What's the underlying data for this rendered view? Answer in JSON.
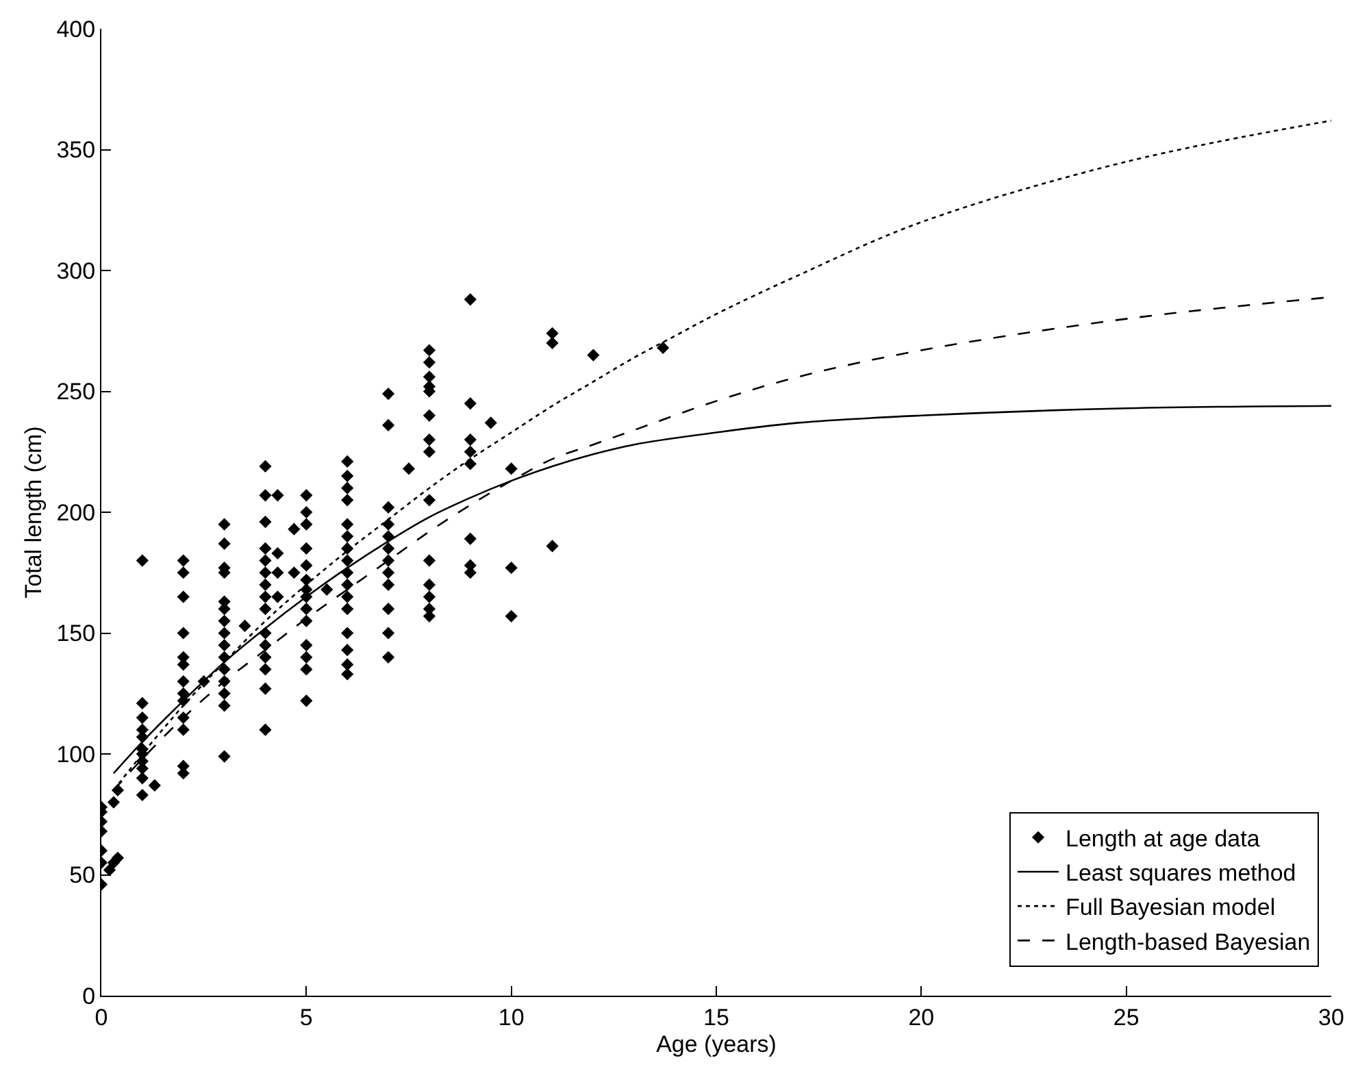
{
  "chart_data": {
    "type": "scatter",
    "xlabel": "Age (years)",
    "ylabel": "Total length (cm)",
    "xlim": [
      0,
      30
    ],
    "ylim": [
      0,
      400
    ],
    "xticks": [
      0,
      5,
      10,
      15,
      20,
      25,
      30
    ],
    "yticks": [
      0,
      50,
      100,
      150,
      200,
      250,
      300,
      350,
      400
    ],
    "legend": "bottom right",
    "series": [
      {
        "name": "Length at age data",
        "marker": "diamond",
        "color": "#000000",
        "x": [
          0,
          0,
          0,
          0,
          0,
          0,
          0,
          0.2,
          0.3,
          0.4,
          0.3,
          0.4,
          1,
          1,
          1,
          1,
          1,
          1,
          1,
          1,
          1,
          1,
          1.3,
          1,
          2,
          2,
          2,
          2,
          2,
          2,
          2,
          2,
          2,
          2,
          2,
          2,
          2,
          2.5,
          3,
          3,
          3,
          3,
          3,
          3,
          3,
          3,
          3,
          3,
          3,
          3,
          3,
          3,
          3,
          3.5,
          4,
          4,
          4,
          4,
          4,
          4,
          4,
          4,
          4,
          4,
          4,
          4,
          4,
          4,
          4,
          4.3,
          4.3,
          4.3,
          4.3,
          4.7,
          4.7,
          5,
          5,
          5,
          5,
          5,
          5,
          5,
          5,
          5,
          5,
          5,
          5,
          5,
          5,
          5.5,
          6,
          6,
          6,
          6,
          6,
          6,
          6,
          6,
          6,
          6,
          6,
          6,
          6,
          6,
          6,
          6,
          7,
          7,
          7,
          7,
          7,
          7,
          7,
          7,
          7,
          7,
          7,
          7,
          7.5,
          8,
          8,
          8,
          8,
          8,
          8,
          8,
          8,
          8,
          8,
          8,
          8,
          8,
          8,
          9,
          9,
          9,
          9,
          9,
          9,
          9,
          9,
          9.5,
          10,
          10,
          10,
          11,
          11,
          11,
          12,
          13.7
        ],
        "values": [
          46,
          60,
          68,
          72,
          76,
          78,
          55,
          52,
          55,
          57,
          80,
          85,
          180,
          121,
          115,
          110,
          107,
          102,
          100,
          97,
          94,
          90,
          87,
          83,
          180,
          175,
          165,
          150,
          140,
          137,
          130,
          125,
          122,
          115,
          110,
          95,
          92,
          130,
          195,
          187,
          177,
          175,
          163,
          160,
          155,
          150,
          145,
          140,
          135,
          130,
          125,
          120,
          99,
          153,
          219,
          207,
          196,
          185,
          180,
          175,
          170,
          165,
          160,
          150,
          145,
          140,
          135,
          127,
          110,
          207,
          183,
          175,
          165,
          193,
          175,
          207,
          200,
          195,
          185,
          178,
          172,
          168,
          165,
          160,
          155,
          145,
          140,
          135,
          122,
          168,
          221,
          215,
          210,
          205,
          195,
          190,
          185,
          180,
          175,
          170,
          165,
          160,
          150,
          143,
          137,
          133,
          249,
          236,
          202,
          195,
          190,
          185,
          180,
          175,
          170,
          160,
          150,
          140,
          218,
          267,
          262,
          256,
          252,
          250,
          240,
          230,
          225,
          205,
          180,
          170,
          165,
          160,
          157,
          288,
          245,
          230,
          225,
          220,
          189,
          178,
          175,
          237,
          218,
          177,
          157,
          274,
          270,
          186,
          265,
          268
        ]
      },
      {
        "name": "Least squares method",
        "type": "line",
        "line_style": "solid",
        "color": "#000000",
        "x": [
          0.3,
          1,
          2,
          3,
          4,
          5,
          6,
          7,
          8,
          9,
          10,
          11,
          12,
          13,
          15,
          17,
          20,
          25,
          30
        ],
        "values": [
          92,
          105,
          122,
          138,
          152,
          165,
          177,
          188,
          198,
          206,
          213,
          219,
          224,
          228,
          233,
          237,
          240,
          243,
          244
        ]
      },
      {
        "name": "Full Bayesian model",
        "type": "line",
        "line_style": "dotted",
        "color": "#000000",
        "x": [
          0.3,
          1,
          2,
          3,
          4,
          5,
          6,
          7,
          8,
          9,
          10,
          11,
          12,
          13,
          14,
          15,
          17,
          20,
          25,
          30
        ],
        "values": [
          85,
          100,
          120,
          138,
          155,
          170,
          184,
          197,
          210,
          222,
          233,
          244,
          254,
          264,
          273,
          282,
          298,
          320,
          345,
          362
        ]
      },
      {
        "name": "Length-based Bayesian",
        "type": "line",
        "line_style": "dashed",
        "color": "#000000",
        "x": [
          0.3,
          1,
          2,
          3,
          4,
          5,
          6,
          7,
          8,
          9,
          10,
          11,
          12,
          13,
          15,
          17,
          20,
          25,
          30
        ],
        "values": [
          85,
          98,
          115,
          130,
          143,
          156,
          168,
          180,
          192,
          203,
          213,
          222,
          228,
          234,
          246,
          256,
          267,
          280,
          289
        ]
      }
    ]
  }
}
